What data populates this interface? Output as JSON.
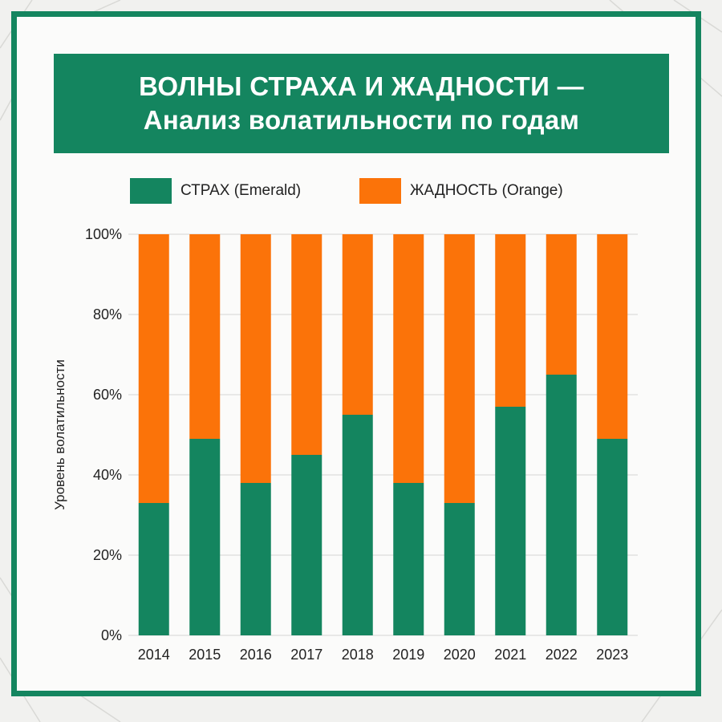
{
  "title": {
    "line1": "ВОЛНЫ СТРАХА И ЖАДНОСТИ —",
    "line2": "Анализ волатильности по годам"
  },
  "colors": {
    "fear": "#14855f",
    "greed": "#fb7309",
    "frame": "#14855f",
    "grid": "#d4d4d4"
  },
  "chart_data": {
    "type": "bar",
    "stacked": true,
    "categories": [
      "2014",
      "2015",
      "2016",
      "2017",
      "2018",
      "2019",
      "2020",
      "2021",
      "2022",
      "2023"
    ],
    "series": [
      {
        "name": "СТРАХ (Emerald)",
        "values": [
          33,
          49,
          38,
          45,
          55,
          38,
          33,
          57,
          65,
          49
        ]
      },
      {
        "name": "ЖАДНОСТЬ (Orange)",
        "values": [
          67,
          51,
          62,
          55,
          45,
          62,
          67,
          43,
          35,
          51
        ]
      }
    ],
    "ylabel": "Уровень волатильности",
    "ylim": [
      0,
      100
    ],
    "yticks": [
      "0%",
      "20%",
      "40%",
      "60%",
      "80%",
      "100%"
    ],
    "grid": true,
    "legend": "top"
  }
}
